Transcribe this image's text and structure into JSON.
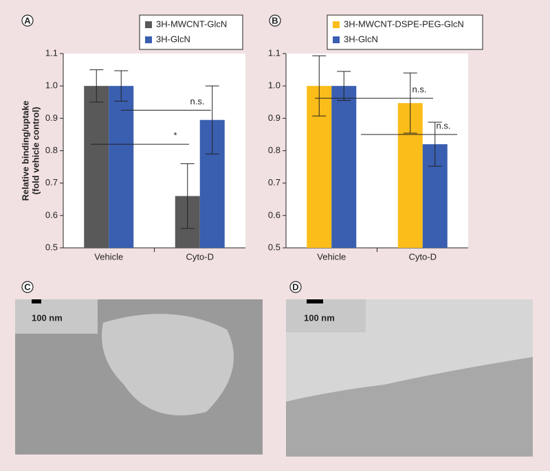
{
  "panels": [
    "A",
    "B",
    "C",
    "D"
  ],
  "chart_data": [
    {
      "type": "bar",
      "ylabel": [
        "Relative binding/uptake",
        "(fold vehicle control)"
      ],
      "categories": [
        "Vehicle",
        "Cyto-D"
      ],
      "series": [
        {
          "name": "3H-MWCNT-GlcN",
          "color": "#595959",
          "values": [
            1.0,
            0.66
          ],
          "errors": [
            0.05,
            0.1
          ]
        },
        {
          "name": "3H-GlcN",
          "color": "#3a5fb0",
          "values": [
            1.0,
            0.895
          ],
          "errors": [
            0.047,
            0.105
          ]
        }
      ],
      "ylim": [
        0.5,
        1.1
      ],
      "yticks": [
        0.5,
        0.6,
        0.7,
        0.8,
        0.9,
        {
          "value": 1,
          "label": "1.0"
        },
        1.1
      ],
      "annotations": [
        "n.s.",
        "*"
      ]
    },
    {
      "type": "bar",
      "categories": [
        "Vehicle",
        "Cyto-D"
      ],
      "series": [
        {
          "name": "3H-MWCNT-DSPE-PEG-GlcN",
          "color": "#fbbd19",
          "values": [
            1.0,
            0.947
          ],
          "errors": [
            0.093,
            0.093
          ]
        },
        {
          "name": "3H-GlcN",
          "color": "#3a5fb0",
          "values": [
            1.0,
            0.82
          ],
          "errors": [
            0.045,
            0.068
          ]
        }
      ],
      "ylim": [
        0.5,
        1.1
      ],
      "yticks": [
        0.5,
        0.6,
        0.7,
        0.8,
        0.9,
        {
          "value": 1,
          "label": "1.0"
        },
        1.1
      ],
      "annotations": [
        "n.s.",
        "n.s."
      ]
    }
  ],
  "micrographs": [
    {
      "scale_label": "100 nm"
    },
    {
      "scale_label": "100 nm"
    }
  ]
}
